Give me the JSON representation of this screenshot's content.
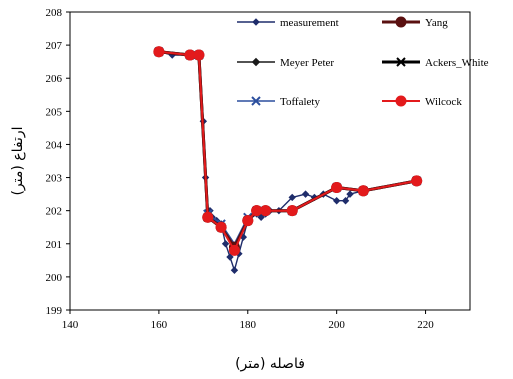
{
  "chart_data": {
    "type": "line",
    "xlabel": "فاصله (متر)",
    "ylabel": "ارتفاع (متر)",
    "xlim": [
      140,
      230
    ],
    "ylim": [
      199,
      208
    ],
    "xticks": [
      140,
      160,
      180,
      200,
      220
    ],
    "yticks": [
      199,
      200,
      201,
      202,
      203,
      204,
      205,
      206,
      207,
      208
    ],
    "legend_position": "top-right",
    "series": [
      {
        "name": "measurement",
        "color": "#1f2d6b",
        "marker": "diamond",
        "x": [
          160,
          163,
          167,
          169,
          170,
          170.5,
          171,
          171.5,
          172,
          173,
          174,
          175,
          176,
          177,
          178,
          179,
          180,
          182,
          183,
          184,
          185,
          187,
          190,
          193,
          195,
          197,
          200,
          202,
          203,
          206,
          218
        ],
        "y": [
          206.8,
          206.7,
          206.7,
          206.7,
          204.7,
          203.0,
          202.0,
          202.0,
          201.8,
          201.7,
          201.6,
          201.0,
          200.6,
          200.2,
          200.7,
          201.2,
          201.7,
          201.9,
          201.8,
          201.9,
          202.0,
          202.0,
          202.4,
          202.5,
          202.4,
          202.5,
          202.3,
          202.3,
          202.5,
          202.6,
          202.9
        ]
      },
      {
        "name": "Yang",
        "color": "#5a1010",
        "marker": "circle",
        "x": [
          160,
          167,
          169,
          171,
          174,
          177,
          180,
          182,
          184,
          190,
          200,
          206,
          218
        ],
        "y": [
          206.8,
          206.7,
          206.7,
          201.8,
          201.5,
          200.9,
          201.7,
          202.0,
          202.0,
          202.0,
          202.7,
          202.6,
          202.9
        ]
      },
      {
        "name": "Meyer Peter",
        "color": "#1a1a1a",
        "marker": "diamond",
        "x": [
          160,
          167,
          169,
          171,
          174,
          177,
          180,
          182,
          184,
          190,
          200,
          206,
          218
        ],
        "y": [
          206.8,
          206.7,
          206.7,
          201.8,
          201.5,
          200.9,
          201.7,
          202.0,
          202.0,
          202.0,
          202.7,
          202.6,
          202.9
        ]
      },
      {
        "name": "Ackers_White",
        "color": "#000000",
        "marker": "x",
        "x": [
          160,
          167,
          169,
          171,
          174,
          177,
          180,
          182,
          184,
          190,
          200,
          206,
          218
        ],
        "y": [
          206.8,
          206.7,
          206.7,
          201.8,
          201.5,
          200.9,
          201.7,
          202.0,
          202.0,
          202.0,
          202.7,
          202.6,
          202.9
        ]
      },
      {
        "name": "Toffalety",
        "color": "#2c4f9e",
        "marker": "x",
        "x": [
          160,
          167,
          169,
          171,
          174,
          177,
          180,
          182,
          184,
          190,
          200,
          206,
          218
        ],
        "y": [
          206.8,
          206.7,
          206.7,
          201.9,
          201.6,
          201.0,
          201.8,
          202.0,
          202.0,
          202.0,
          202.7,
          202.6,
          202.9
        ]
      },
      {
        "name": "Wilcock",
        "color": "#e31a1c",
        "marker": "circle",
        "x": [
          160,
          167,
          169,
          171,
          174,
          177,
          180,
          182,
          184,
          190,
          200,
          206,
          218
        ],
        "y": [
          206.8,
          206.7,
          206.7,
          201.8,
          201.5,
          200.8,
          201.7,
          202.0,
          202.0,
          202.0,
          202.7,
          202.6,
          202.9
        ]
      }
    ]
  }
}
